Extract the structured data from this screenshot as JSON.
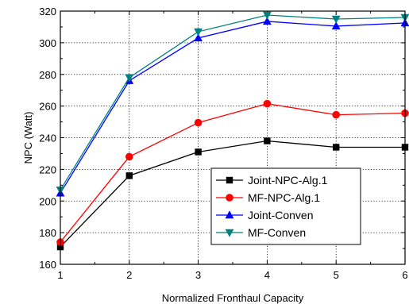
{
  "chart_data": {
    "type": "line",
    "title": "",
    "xlabel": "Normalized Fronthaul Capacity",
    "ylabel": "NPC (Watt)",
    "xlim": [
      1,
      6
    ],
    "ylim": [
      160,
      320
    ],
    "x_ticks": [
      1,
      2,
      3,
      4,
      5,
      6
    ],
    "y_ticks": [
      160,
      180,
      200,
      220,
      240,
      260,
      280,
      300,
      320
    ],
    "grid": "dotted",
    "legend_position": "bottom-right",
    "series": [
      {
        "name": "Joint-NPC-Alg.1",
        "color": "#000000",
        "marker": "square",
        "x": [
          1,
          2,
          3,
          4,
          5,
          6
        ],
        "y": [
          171,
          216,
          231,
          238,
          234,
          234
        ]
      },
      {
        "name": "MF-NPC-Alg.1",
        "color": "#ff0000",
        "marker": "circle",
        "x": [
          1,
          2,
          3,
          4,
          5,
          6
        ],
        "y": [
          174,
          228,
          249.5,
          261.5,
          254.5,
          255.5
        ]
      },
      {
        "name": "Joint-Conven",
        "color": "#0000ff",
        "marker": "triangle-up",
        "x": [
          1,
          2,
          3,
          4,
          5,
          6
        ],
        "y": [
          205,
          276,
          303,
          313.5,
          310.5,
          312.5
        ]
      },
      {
        "name": "MF-Conven",
        "color": "#008080",
        "marker": "triangle-down",
        "x": [
          1,
          2,
          3,
          4,
          5,
          6
        ],
        "y": [
          207,
          278,
          307,
          317.5,
          315,
          316
        ]
      }
    ]
  }
}
